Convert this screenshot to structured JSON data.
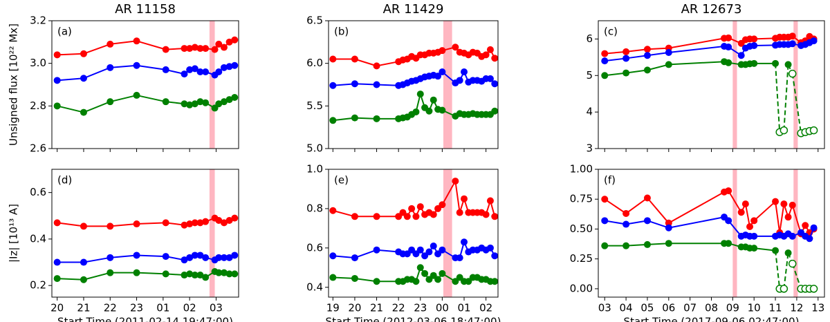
{
  "chart_data": [
    {
      "type": "line",
      "title": "AR 11158",
      "annotation": "(a)",
      "ylabel": "Unsigned flux [10²² Mx]",
      "x": [
        20,
        21,
        22,
        23,
        24.1,
        24.8,
        25.0,
        25.2,
        25.4,
        25.6,
        25.95,
        26.1,
        26.3,
        26.5,
        26.7
      ],
      "xlim": [
        19.8,
        26.85
      ],
      "xticks": [
        20,
        21,
        22,
        23,
        24,
        25,
        26
      ],
      "ylim": [
        2.6,
        3.2
      ],
      "yticks": [
        2.6,
        2.8,
        {
          "value": 3,
          "label": "3.0"
        },
        3.2
      ],
      "shaded": [
        [
          25.75,
          25.95
        ]
      ],
      "shade_color": "#ffb6c1",
      "series": [
        {
          "color": "#ff0000",
          "values": [
            3.04,
            3.045,
            3.09,
            3.105,
            3.065,
            3.07,
            3.07,
            3.075,
            3.07,
            3.07,
            3.065,
            3.09,
            3.075,
            3.1,
            3.11
          ]
        },
        {
          "color": "#0000ff",
          "values": [
            2.92,
            2.93,
            2.98,
            2.99,
            2.97,
            2.95,
            2.97,
            2.975,
            2.96,
            2.96,
            2.945,
            2.96,
            2.98,
            2.985,
            2.99
          ]
        },
        {
          "color": "#008000",
          "values": [
            2.8,
            2.77,
            2.82,
            2.85,
            2.82,
            2.81,
            2.805,
            2.81,
            2.82,
            2.815,
            2.79,
            2.81,
            2.82,
            2.83,
            2.84
          ]
        }
      ]
    },
    {
      "type": "line",
      "title": "AR 11429",
      "annotation": "(b)",
      "x": [
        19,
        20,
        21,
        22,
        22.2,
        22.4,
        22.6,
        22.8,
        23.0,
        23.2,
        23.4,
        23.6,
        23.8,
        24.0,
        24.6,
        24.8,
        25.0,
        25.2,
        25.4,
        25.6,
        25.8,
        26.0,
        26.2,
        26.4
      ],
      "xlim": [
        18.8,
        26.55
      ],
      "xticks": [
        19,
        20,
        21,
        22,
        23,
        24,
        25,
        26
      ],
      "ylim": [
        5.0,
        6.5
      ],
      "yticks": [
        {
          "value": 5,
          "label": "5.0"
        },
        5.5,
        {
          "value": 6,
          "label": "6.0"
        },
        6.5
      ],
      "shaded": [
        [
          24.05,
          24.45
        ]
      ],
      "shade_color": "#ffb6c1",
      "series": [
        {
          "color": "#ff0000",
          "values": [
            6.05,
            6.05,
            5.97,
            6.02,
            6.04,
            6.05,
            6.08,
            6.06,
            6.1,
            6.1,
            6.12,
            6.12,
            6.13,
            6.15,
            6.19,
            6.13,
            6.12,
            6.1,
            6.13,
            6.12,
            6.08,
            6.1,
            6.16,
            6.06
          ]
        },
        {
          "color": "#0000ff",
          "values": [
            5.74,
            5.76,
            5.75,
            5.74,
            5.75,
            5.77,
            5.79,
            5.8,
            5.82,
            5.84,
            5.85,
            5.86,
            5.85,
            5.9,
            5.77,
            5.8,
            5.9,
            5.78,
            5.8,
            5.8,
            5.79,
            5.82,
            5.82,
            5.76
          ]
        },
        {
          "color": "#008000",
          "values": [
            5.33,
            5.36,
            5.35,
            5.35,
            5.36,
            5.37,
            5.4,
            5.43,
            5.64,
            5.48,
            5.44,
            5.57,
            5.46,
            5.45,
            5.38,
            5.41,
            5.4,
            5.4,
            5.41,
            5.4,
            5.4,
            5.4,
            5.4,
            5.44
          ]
        }
      ]
    },
    {
      "type": "line",
      "title": "AR 12673",
      "annotation": "(c)",
      "x": [
        3,
        4,
        5,
        6,
        8.6,
        8.8,
        9.4,
        9.6,
        9.8,
        10.0,
        11.0,
        11.2,
        11.4,
        11.6,
        11.8,
        12.2,
        12.4,
        12.6,
        12.8
      ],
      "xlim": [
        2.7,
        13.3
      ],
      "xticks": [
        3,
        4,
        5,
        6,
        7,
        8,
        9,
        10,
        11,
        12,
        13
      ],
      "ylim": [
        3,
        6.5
      ],
      "yticks": [
        3,
        4,
        5,
        6
      ],
      "shaded": [
        [
          9.0,
          9.2
        ],
        [
          11.85,
          12.05
        ]
      ],
      "shade_color": "#ffb6c1",
      "series": [
        {
          "color": "#ff0000",
          "values": [
            5.6,
            5.65,
            5.72,
            5.75,
            6.02,
            6.03,
            5.88,
            5.98,
            6.0,
            6.0,
            6.02,
            6.05,
            6.05,
            6.05,
            6.08,
            5.9,
            5.95,
            6.07,
            6.0
          ]
        },
        {
          "color": "#0000ff",
          "values": [
            5.4,
            5.47,
            5.55,
            5.63,
            5.8,
            5.78,
            5.55,
            5.75,
            5.8,
            5.82,
            5.83,
            5.85,
            5.85,
            5.85,
            5.87,
            5.82,
            5.85,
            5.9,
            5.95
          ]
        },
        {
          "color": "#008000",
          "values": [
            5.0,
            5.07,
            5.15,
            5.3,
            5.38,
            5.35,
            5.3,
            5.3,
            5.32,
            5.33,
            5.33,
            3.45,
            3.5,
            5.3,
            5.05,
            3.42,
            3.45,
            3.48,
            3.5
          ],
          "open": [
            false,
            false,
            false,
            false,
            false,
            false,
            false,
            false,
            false,
            false,
            false,
            true,
            true,
            false,
            true,
            true,
            true,
            true,
            true
          ]
        }
      ]
    },
    {
      "type": "line",
      "annotation": "(d)",
      "ylabel": "|Iz| [10¹³ A]",
      "xlabel": "Start Time (2011-02-14 19:47:00)",
      "x": [
        20,
        21,
        22,
        23,
        24.1,
        24.8,
        25.0,
        25.2,
        25.4,
        25.6,
        25.95,
        26.1,
        26.3,
        26.5,
        26.7
      ],
      "xlim": [
        19.8,
        26.85
      ],
      "xticks": [
        20,
        21,
        22,
        23,
        {
          "value": 24,
          "label": "01"
        },
        {
          "value": 25,
          "label": "02"
        },
        {
          "value": 26,
          "label": "03"
        }
      ],
      "ylim": [
        0.15,
        0.7
      ],
      "yticks": [
        0.2,
        0.4,
        0.6
      ],
      "shaded": [
        [
          25.75,
          25.95
        ]
      ],
      "shade_color": "#ffb6c1",
      "series": [
        {
          "color": "#ff0000",
          "values": [
            0.47,
            0.455,
            0.455,
            0.465,
            0.47,
            0.46,
            0.465,
            0.47,
            0.47,
            0.475,
            0.49,
            0.48,
            0.47,
            0.48,
            0.49
          ]
        },
        {
          "color": "#0000ff",
          "values": [
            0.3,
            0.3,
            0.32,
            0.33,
            0.325,
            0.31,
            0.32,
            0.33,
            0.33,
            0.32,
            0.31,
            0.32,
            0.32,
            0.32,
            0.33
          ]
        },
        {
          "color": "#008000",
          "values": [
            0.23,
            0.225,
            0.255,
            0.255,
            0.25,
            0.245,
            0.25,
            0.245,
            0.245,
            0.235,
            0.26,
            0.255,
            0.255,
            0.25,
            0.25
          ]
        }
      ]
    },
    {
      "type": "line",
      "annotation": "(e)",
      "xlabel": "Start Time (2012-03-06 18:47:00)",
      "x": [
        19,
        20,
        21,
        22,
        22.2,
        22.4,
        22.6,
        22.8,
        23.0,
        23.2,
        23.4,
        23.6,
        23.8,
        24.0,
        24.6,
        24.8,
        25.0,
        25.2,
        25.4,
        25.6,
        25.8,
        26.0,
        26.2,
        26.4
      ],
      "xlim": [
        18.8,
        26.55
      ],
      "xticks": [
        19,
        20,
        21,
        22,
        23,
        {
          "value": 24,
          "label": "00"
        },
        {
          "value": 25,
          "label": "01"
        },
        {
          "value": 26,
          "label": "02"
        }
      ],
      "ylim": [
        0.35,
        1.0
      ],
      "yticks": [
        0.4,
        0.6,
        0.8,
        {
          "value": 1,
          "label": "1.0"
        }
      ],
      "shaded": [
        [
          24.05,
          24.45
        ]
      ],
      "shade_color": "#ffb6c1",
      "series": [
        {
          "color": "#ff0000",
          "values": [
            0.79,
            0.76,
            0.76,
            0.76,
            0.78,
            0.76,
            0.8,
            0.76,
            0.81,
            0.77,
            0.78,
            0.77,
            0.8,
            0.82,
            0.94,
            0.78,
            0.85,
            0.78,
            0.78,
            0.78,
            0.78,
            0.77,
            0.84,
            0.76
          ]
        },
        {
          "color": "#0000ff",
          "values": [
            0.56,
            0.55,
            0.59,
            0.58,
            0.57,
            0.57,
            0.59,
            0.57,
            0.59,
            0.56,
            0.58,
            0.61,
            0.57,
            0.59,
            0.55,
            0.55,
            0.63,
            0.58,
            0.59,
            0.59,
            0.6,
            0.59,
            0.6,
            0.56
          ]
        },
        {
          "color": "#008000",
          "values": [
            0.45,
            0.445,
            0.43,
            0.43,
            0.43,
            0.44,
            0.44,
            0.43,
            0.5,
            0.47,
            0.44,
            0.46,
            0.44,
            0.47,
            0.43,
            0.45,
            0.43,
            0.43,
            0.45,
            0.45,
            0.44,
            0.44,
            0.43,
            0.43
          ]
        }
      ]
    },
    {
      "type": "line",
      "annotation": "(f)",
      "xlabel": "Start Time (2017-09-06 02:47:00)",
      "x": [
        3,
        4,
        5,
        6,
        8.6,
        8.8,
        9.4,
        9.6,
        9.8,
        10.0,
        11.0,
        11.2,
        11.4,
        11.6,
        11.8,
        12.2,
        12.4,
        12.6,
        12.8
      ],
      "xlim": [
        2.7,
        13.3
      ],
      "xticks": [
        {
          "value": 3,
          "label": "03"
        },
        {
          "value": 4,
          "label": "04"
        },
        {
          "value": 5,
          "label": "05"
        },
        {
          "value": 6,
          "label": "06"
        },
        {
          "value": 7,
          "label": "07"
        },
        {
          "value": 8,
          "label": "08"
        },
        {
          "value": 9,
          "label": "09"
        },
        10,
        11,
        12,
        13
      ],
      "ylim": [
        -0.07,
        1.0
      ],
      "yticks": [
        {
          "value": 0,
          "label": "0.00"
        },
        {
          "value": 0.25,
          "label": "0.25"
        },
        {
          "value": 0.5,
          "label": "0.50"
        },
        {
          "value": 0.75,
          "label": "0.75"
        },
        {
          "value": 1,
          "label": "1.00"
        }
      ],
      "shaded": [
        [
          9.0,
          9.2
        ],
        [
          11.85,
          12.05
        ]
      ],
      "shade_color": "#ffb6c1",
      "series": [
        {
          "color": "#ff0000",
          "values": [
            0.75,
            0.63,
            0.76,
            0.55,
            0.81,
            0.82,
            0.64,
            0.71,
            0.52,
            0.57,
            0.73,
            0.47,
            0.71,
            0.6,
            0.7,
            0.46,
            0.53,
            0.47,
            0.5
          ]
        },
        {
          "color": "#0000ff",
          "values": [
            0.57,
            0.54,
            0.57,
            0.51,
            0.6,
            0.57,
            0.44,
            0.45,
            0.44,
            0.44,
            0.44,
            0.45,
            0.44,
            0.46,
            0.44,
            0.47,
            0.44,
            0.42,
            0.51
          ]
        },
        {
          "color": "#008000",
          "values": [
            0.36,
            0.36,
            0.37,
            0.38,
            0.38,
            0.38,
            0.35,
            0.35,
            0.34,
            0.34,
            0.32,
            0.0,
            0.0,
            0.3,
            0.21,
            0.0,
            0.0,
            0.0,
            0.0
          ],
          "open": [
            false,
            false,
            false,
            false,
            false,
            false,
            false,
            false,
            false,
            false,
            false,
            true,
            true,
            false,
            true,
            true,
            true,
            true,
            true
          ]
        }
      ]
    }
  ]
}
